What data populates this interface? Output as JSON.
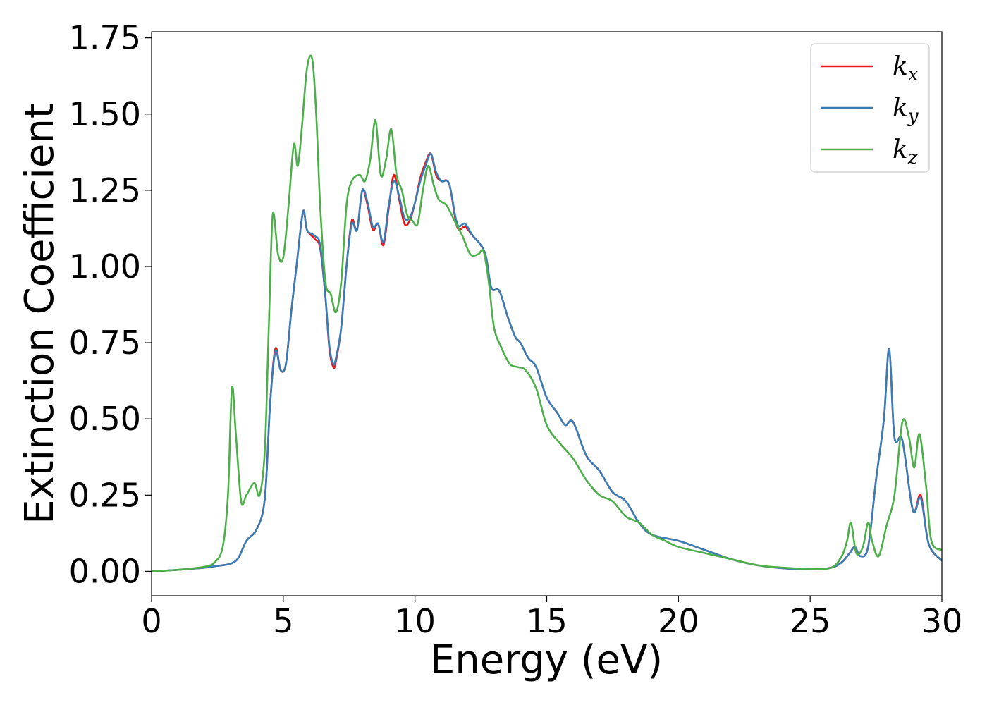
{
  "chart_data": {
    "type": "line",
    "title": "",
    "xlabel": "Energy (eV)",
    "ylabel": "Extinction Coefficient",
    "xlim": [
      0,
      30
    ],
    "ylim": [
      -0.08,
      1.77
    ],
    "xticks": [
      0,
      5,
      10,
      15,
      20,
      25,
      30
    ],
    "xtick_labels": [
      "0",
      "5",
      "10",
      "15",
      "20",
      "25",
      "30"
    ],
    "yticks": [
      0,
      0.25,
      0.5,
      0.75,
      1.0,
      1.25,
      1.5,
      1.75
    ],
    "ytick_labels": [
      "0.00",
      "0.25",
      "0.50",
      "0.75",
      "1.00",
      "1.25",
      "1.50",
      "1.75"
    ],
    "grid": false,
    "legend_position": "top-right",
    "series": [
      {
        "name": "k",
        "subscript": "x",
        "color": "#e41a1c",
        "x": [
          0,
          1,
          2,
          2.5,
          3,
          3.3,
          3.6,
          4,
          4.3,
          4.5,
          4.7,
          4.9,
          5.1,
          5.3,
          5.5,
          5.75,
          5.9,
          6.2,
          6.4,
          6.6,
          6.75,
          6.9,
          7.0,
          7.2,
          7.4,
          7.6,
          7.8,
          8.0,
          8.2,
          8.4,
          8.6,
          8.8,
          9.0,
          9.2,
          9.4,
          9.6,
          9.8,
          10.0,
          10.2,
          10.4,
          10.6,
          10.8,
          11.0,
          11.3,
          11.6,
          11.9,
          12.2,
          12.5,
          12.7,
          12.9,
          13.2,
          13.5,
          13.8,
          14.0,
          14.3,
          14.6,
          15.0,
          15.4,
          15.7,
          16.0,
          16.5,
          17.0,
          17.5,
          18.0,
          18.5,
          19.0,
          20.0,
          21.0,
          22.0,
          23.0,
          24.0,
          25.0,
          25.8,
          26.2,
          26.5,
          26.7,
          26.9,
          27.2,
          27.5,
          27.8,
          28.0,
          28.2,
          28.5,
          28.9,
          29.2,
          29.5,
          30.0
        ],
        "y": [
          0,
          0.005,
          0.012,
          0.018,
          0.025,
          0.045,
          0.1,
          0.14,
          0.24,
          0.55,
          0.73,
          0.66,
          0.68,
          0.85,
          1.0,
          1.18,
          1.12,
          1.09,
          1.06,
          0.9,
          0.73,
          0.67,
          0.69,
          0.8,
          1.0,
          1.15,
          1.12,
          1.25,
          1.2,
          1.12,
          1.14,
          1.07,
          1.19,
          1.3,
          1.22,
          1.14,
          1.15,
          1.21,
          1.29,
          1.34,
          1.37,
          1.3,
          1.28,
          1.27,
          1.13,
          1.13,
          1.1,
          1.07,
          1.03,
          0.93,
          0.92,
          0.84,
          0.77,
          0.75,
          0.7,
          0.67,
          0.57,
          0.52,
          0.48,
          0.49,
          0.38,
          0.33,
          0.26,
          0.23,
          0.16,
          0.12,
          0.1,
          0.07,
          0.04,
          0.02,
          0.01,
          0.007,
          0.012,
          0.03,
          0.06,
          0.08,
          0.05,
          0.08,
          0.3,
          0.5,
          0.73,
          0.44,
          0.43,
          0.2,
          0.25,
          0.09,
          0.035
        ]
      },
      {
        "name": "k",
        "subscript": "y",
        "color": "#377eb8",
        "x": [
          0,
          1,
          2,
          2.5,
          3,
          3.3,
          3.6,
          4,
          4.3,
          4.5,
          4.7,
          4.9,
          5.1,
          5.3,
          5.5,
          5.75,
          5.9,
          6.2,
          6.4,
          6.6,
          6.75,
          6.9,
          7.0,
          7.2,
          7.4,
          7.6,
          7.8,
          8.0,
          8.2,
          8.4,
          8.6,
          8.8,
          9.0,
          9.2,
          9.4,
          9.6,
          9.8,
          10.0,
          10.2,
          10.4,
          10.6,
          10.8,
          11.0,
          11.3,
          11.6,
          11.9,
          12.2,
          12.5,
          12.7,
          12.9,
          13.2,
          13.5,
          13.8,
          14.0,
          14.3,
          14.6,
          15.0,
          15.4,
          15.7,
          16.0,
          16.5,
          17.0,
          17.5,
          18.0,
          18.5,
          19.0,
          20.0,
          21.0,
          22.0,
          23.0,
          24.0,
          25.0,
          25.8,
          26.2,
          26.5,
          26.7,
          26.9,
          27.2,
          27.5,
          27.8,
          28.0,
          28.2,
          28.5,
          28.9,
          29.2,
          29.5,
          30.0
        ],
        "y": [
          0,
          0.005,
          0.012,
          0.018,
          0.025,
          0.045,
          0.1,
          0.14,
          0.24,
          0.55,
          0.72,
          0.66,
          0.68,
          0.85,
          1.0,
          1.18,
          1.12,
          1.1,
          1.07,
          0.9,
          0.74,
          0.68,
          0.7,
          0.8,
          1.0,
          1.14,
          1.12,
          1.25,
          1.21,
          1.13,
          1.14,
          1.08,
          1.2,
          1.28,
          1.23,
          1.16,
          1.16,
          1.21,
          1.28,
          1.33,
          1.37,
          1.31,
          1.28,
          1.27,
          1.14,
          1.14,
          1.1,
          1.07,
          1.03,
          0.93,
          0.92,
          0.84,
          0.77,
          0.75,
          0.7,
          0.67,
          0.57,
          0.52,
          0.48,
          0.49,
          0.38,
          0.33,
          0.26,
          0.23,
          0.16,
          0.12,
          0.1,
          0.07,
          0.04,
          0.02,
          0.01,
          0.007,
          0.012,
          0.03,
          0.06,
          0.08,
          0.05,
          0.08,
          0.3,
          0.5,
          0.73,
          0.44,
          0.43,
          0.2,
          0.24,
          0.09,
          0.035
        ]
      },
      {
        "name": "k",
        "subscript": "z",
        "color": "#4daf4a",
        "x": [
          0,
          1,
          2,
          2.4,
          2.7,
          2.9,
          3.05,
          3.2,
          3.4,
          3.6,
          3.9,
          4.1,
          4.3,
          4.45,
          4.6,
          4.8,
          5.0,
          5.2,
          5.4,
          5.55,
          5.7,
          5.9,
          6.1,
          6.25,
          6.4,
          6.6,
          6.8,
          7.0,
          7.2,
          7.4,
          7.6,
          7.9,
          8.1,
          8.3,
          8.5,
          8.7,
          8.9,
          9.1,
          9.3,
          9.5,
          9.7,
          9.9,
          10.1,
          10.3,
          10.5,
          10.7,
          10.9,
          11.2,
          11.5,
          11.8,
          12.1,
          12.4,
          12.6,
          12.8,
          13.0,
          13.3,
          13.6,
          13.9,
          14.2,
          14.6,
          15.0,
          15.5,
          16.0,
          16.5,
          17.0,
          17.5,
          18.0,
          18.5,
          19.0,
          19.5,
          20.0,
          21.0,
          22.0,
          23.0,
          24.0,
          25.0,
          25.8,
          26.2,
          26.4,
          26.55,
          26.75,
          27.0,
          27.2,
          27.35,
          27.6,
          27.9,
          28.2,
          28.5,
          28.75,
          28.95,
          29.15,
          29.4,
          29.6,
          30.0
        ],
        "y": [
          0,
          0.005,
          0.015,
          0.03,
          0.08,
          0.25,
          0.6,
          0.45,
          0.23,
          0.25,
          0.29,
          0.25,
          0.4,
          0.8,
          1.17,
          1.04,
          1.03,
          1.2,
          1.4,
          1.33,
          1.45,
          1.65,
          1.68,
          1.5,
          1.2,
          0.95,
          0.91,
          0.85,
          0.95,
          1.2,
          1.28,
          1.3,
          1.28,
          1.35,
          1.48,
          1.3,
          1.35,
          1.45,
          1.3,
          1.25,
          1.17,
          1.15,
          1.14,
          1.25,
          1.33,
          1.27,
          1.22,
          1.2,
          1.15,
          1.1,
          1.04,
          1.04,
          1.05,
          0.95,
          0.8,
          0.73,
          0.68,
          0.67,
          0.66,
          0.6,
          0.48,
          0.42,
          0.37,
          0.3,
          0.25,
          0.23,
          0.18,
          0.16,
          0.12,
          0.1,
          0.08,
          0.06,
          0.04,
          0.02,
          0.012,
          0.008,
          0.012,
          0.05,
          0.1,
          0.16,
          0.06,
          0.08,
          0.16,
          0.1,
          0.05,
          0.15,
          0.25,
          0.49,
          0.44,
          0.34,
          0.45,
          0.28,
          0.1,
          0.07
        ]
      }
    ]
  }
}
